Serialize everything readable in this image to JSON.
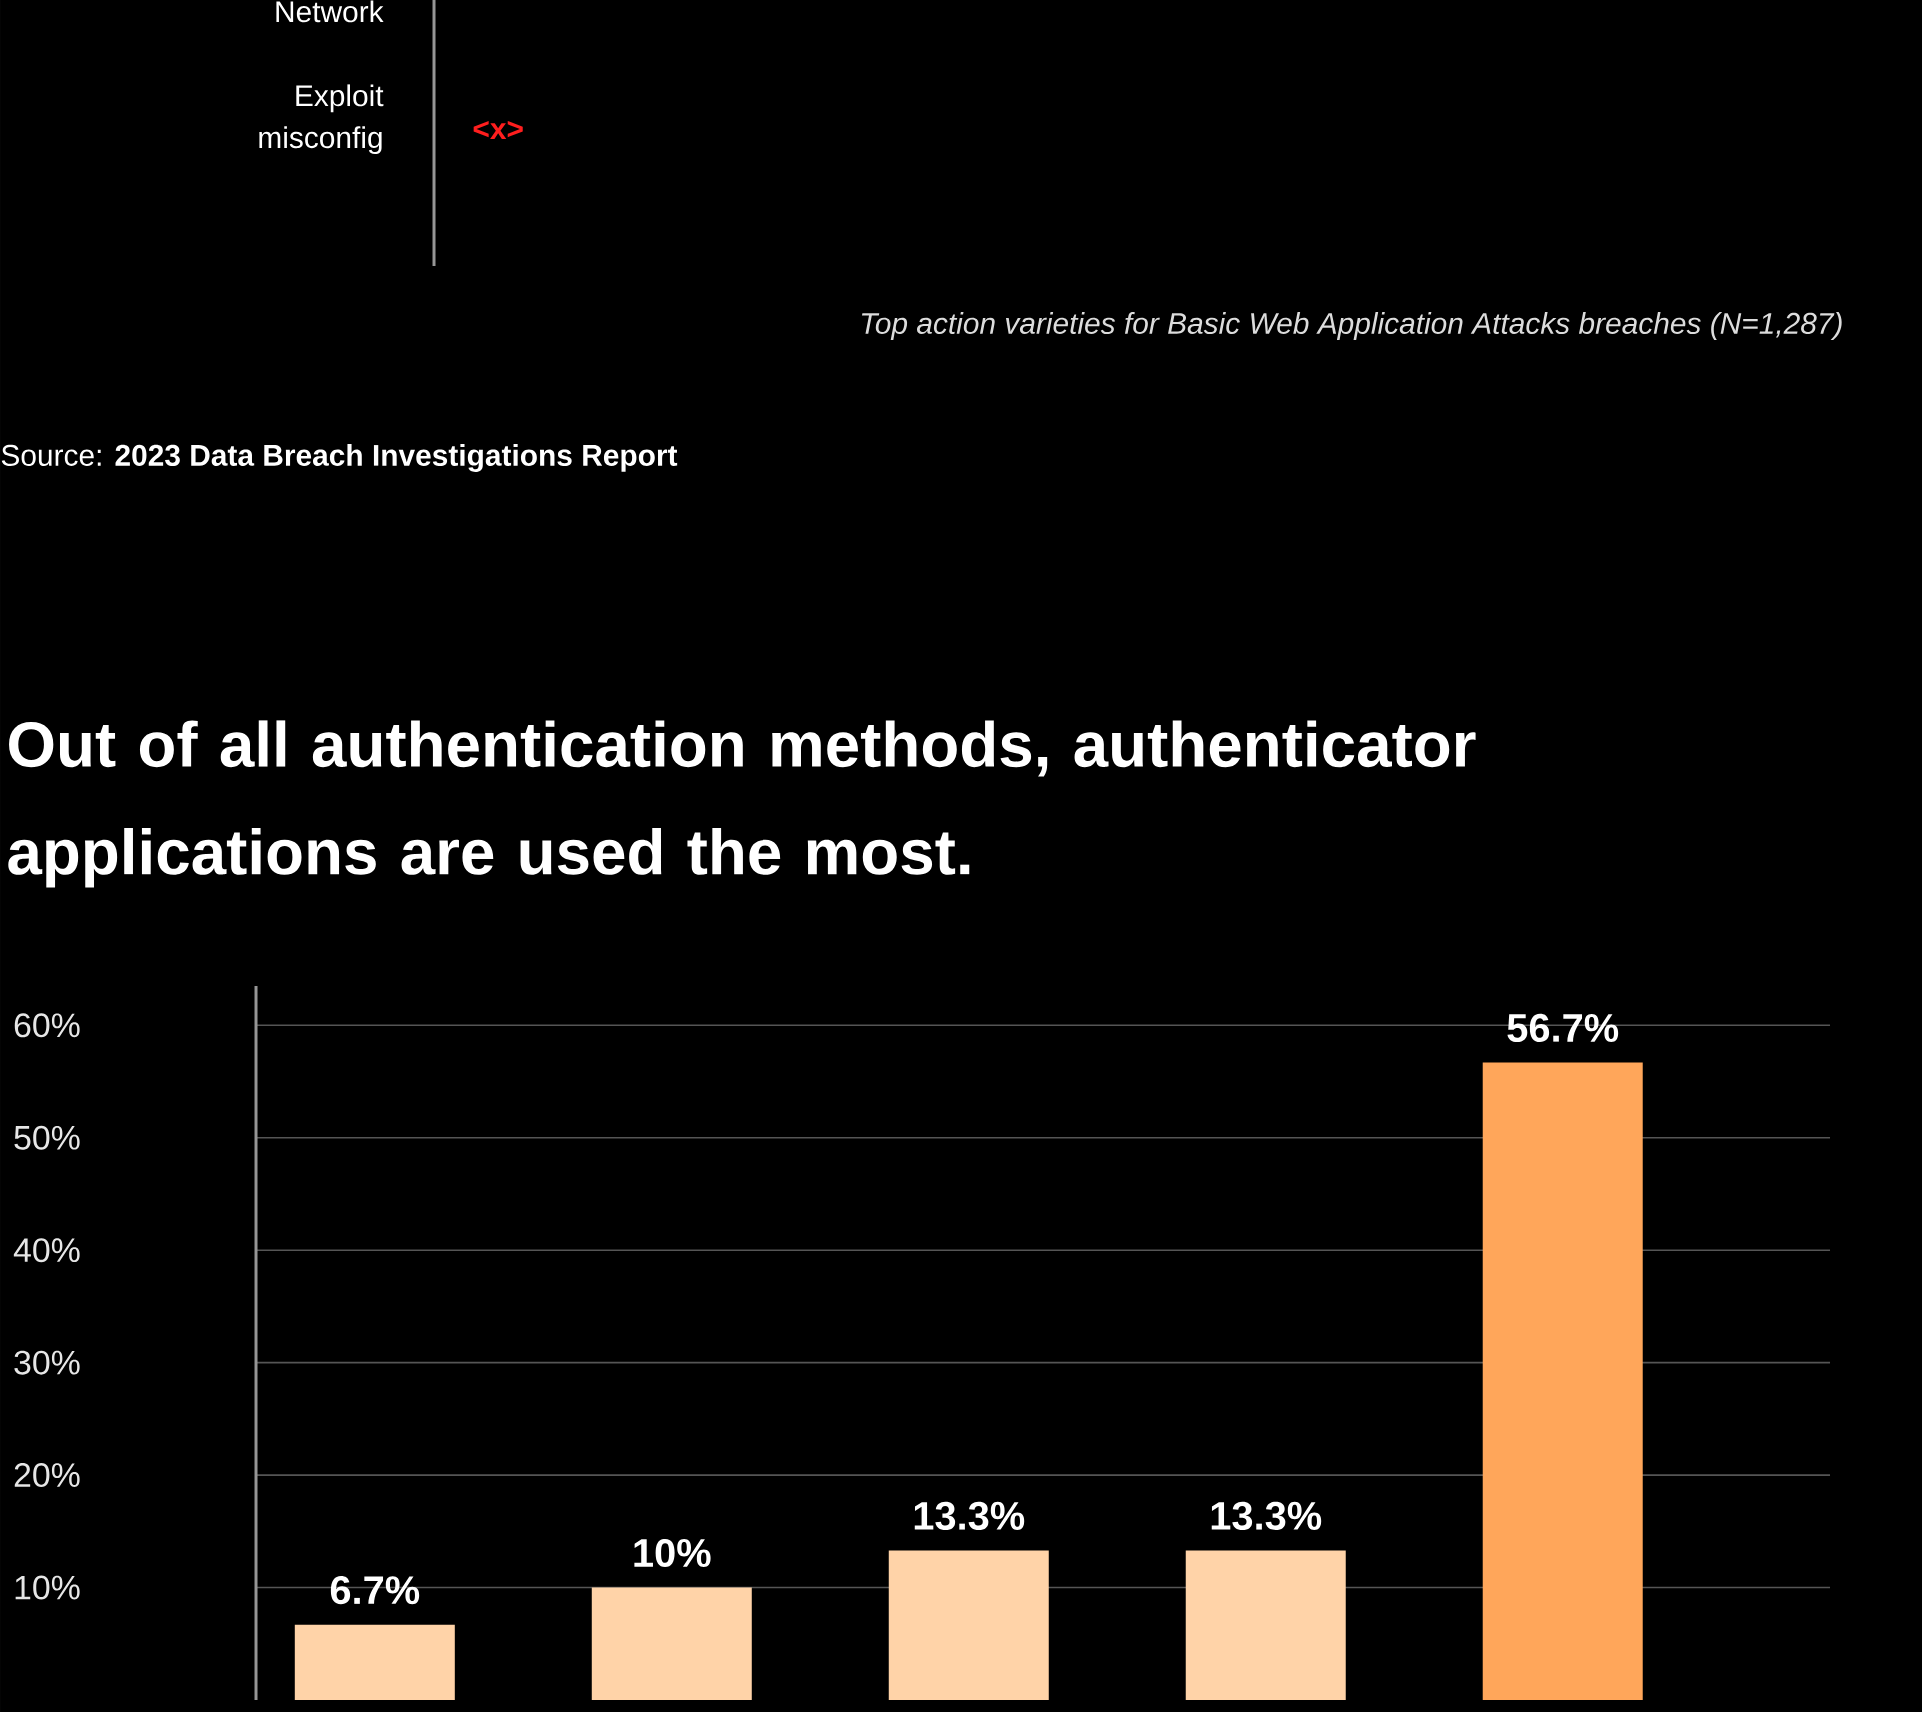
{
  "chart_data": [
    {
      "type": "other",
      "categories": [
        "Network",
        "Exploit misconfig"
      ],
      "annotations": [
        "<x>",
        "Top action varieties for Basic Web Application Attacks breaches (N=1,287)",
        "Source: **2023 Data Breach Investigations Report**"
      ]
    },
    {
      "type": "bar",
      "title": "Out of all authentication methods, authenticator applications are used the most.",
      "categories": [
        null,
        null,
        null,
        null,
        null
      ],
      "values": [
        6.7,
        10,
        13.3,
        13.3,
        56.7
      ],
      "colors": [
        "#ffd3a8",
        "#ffd3a8",
        "#ffd3a8",
        "#ffd3a8",
        "#ffa65a"
      ],
      "value_labels": [
        "6.7%",
        "10%",
        "13.3%",
        "13.3%",
        "56.7%"
      ],
      "ylim": [
        0,
        63.5
      ],
      "yticks": [
        {
          "value": 10,
          "label": "10%"
        },
        {
          "value": 20,
          "label": "20%"
        },
        {
          "value": 30,
          "label": "30%"
        },
        {
          "value": 40,
          "label": "40%"
        },
        {
          "value": 50,
          "label": "50%"
        },
        {
          "value": 60,
          "label": "60%"
        }
      ],
      "grid": "y"
    }
  ]
}
